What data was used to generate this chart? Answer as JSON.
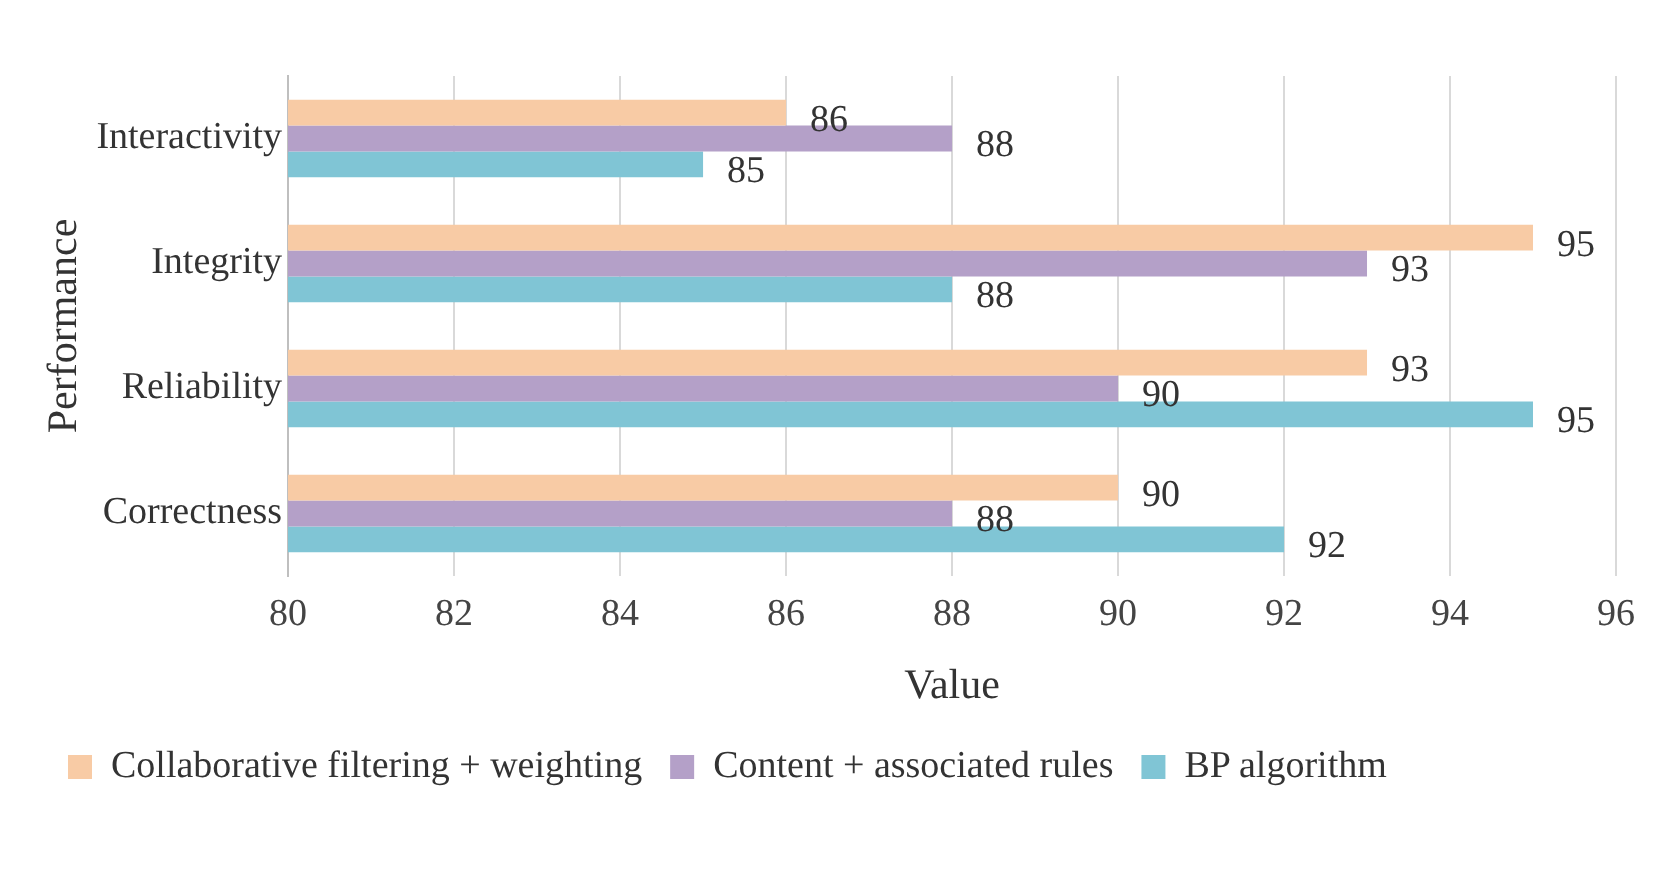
{
  "chart_data": {
    "type": "bar",
    "orientation": "horizontal",
    "xlabel": "Value",
    "ylabel": "Performance",
    "categories": [
      "Interactivity",
      "Integrity",
      "Reliability",
      "Correctness"
    ],
    "series": [
      {
        "name": "Collaborative filtering + weighting",
        "color": "#f8cba5",
        "values": [
          86,
          95,
          93,
          90
        ]
      },
      {
        "name": "Content + associated rules",
        "color": "#b4a0c8",
        "values": [
          88,
          93,
          90,
          88
        ]
      },
      {
        "name": "BP algorithm",
        "color": "#80c5d5",
        "values": [
          85,
          88,
          95,
          92
        ]
      }
    ],
    "xlim": [
      80,
      96
    ],
    "xticks": [
      80,
      82,
      84,
      86,
      88,
      90,
      92,
      94,
      96
    ],
    "grid": "x",
    "legend": "bottom",
    "data_labels": true
  }
}
